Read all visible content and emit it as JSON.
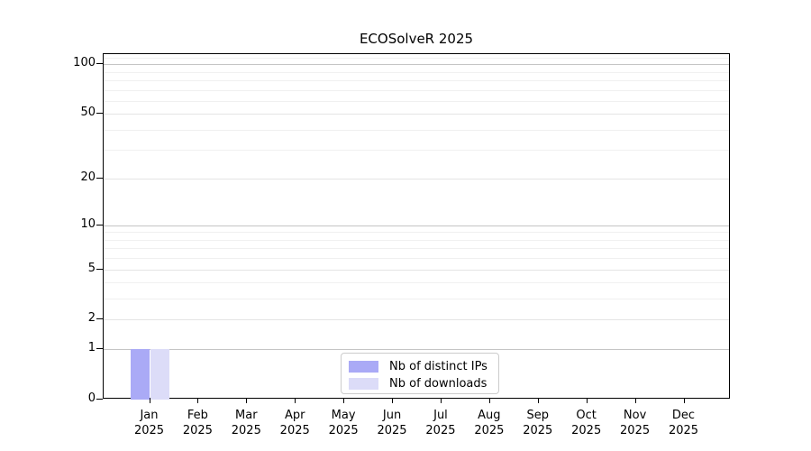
{
  "figure": {
    "title": "ECOSolveR 2025"
  },
  "chart_data": {
    "type": "bar",
    "title": "ECOSolveR 2025",
    "months": [
      "Jan",
      "Feb",
      "Mar",
      "Apr",
      "May",
      "Jun",
      "Jul",
      "Aug",
      "Sep",
      "Oct",
      "Nov",
      "Dec"
    ],
    "year": "2025",
    "categories": [
      "Jan 2025",
      "Feb 2025",
      "Mar 2025",
      "Apr 2025",
      "May 2025",
      "Jun 2025",
      "Jul 2025",
      "Aug 2025",
      "Sep 2025",
      "Oct 2025",
      "Nov 2025",
      "Dec 2025"
    ],
    "series": [
      {
        "name": "Nb of distinct IPs",
        "color": "#aaaaf6",
        "values": [
          1,
          0,
          0,
          0,
          0,
          0,
          0,
          0,
          0,
          0,
          0,
          0
        ]
      },
      {
        "name": "Nb of downloads",
        "color": "#dcdcf8",
        "values": [
          1,
          0,
          0,
          0,
          0,
          0,
          0,
          0,
          0,
          0,
          0,
          0
        ]
      }
    ],
    "xlabel": "",
    "ylabel": "",
    "y_axis": {
      "scale": "log1p",
      "tick_values": [
        0,
        1,
        2,
        5,
        10,
        20,
        50,
        100
      ],
      "decade_gridlines": [
        1,
        10,
        100
      ],
      "mid_gridlines": [
        2,
        5,
        20,
        50
      ],
      "minor_gridlines": [
        3,
        4,
        6,
        7,
        8,
        9,
        30,
        40,
        60,
        70,
        80,
        90,
        110
      ],
      "max": 115
    },
    "grid": true,
    "legend_position": "bottom-center"
  },
  "colors": {
    "bar_distinct_ips": "#aaaaf6",
    "bar_downloads": "#dcdcf8",
    "decade_gridline": "#c5c5c5",
    "mid_gridline": "#e4e4e4",
    "minor_gridline": "#f0f0f0",
    "axis": "#000000",
    "legend_border": "#cccccc"
  }
}
